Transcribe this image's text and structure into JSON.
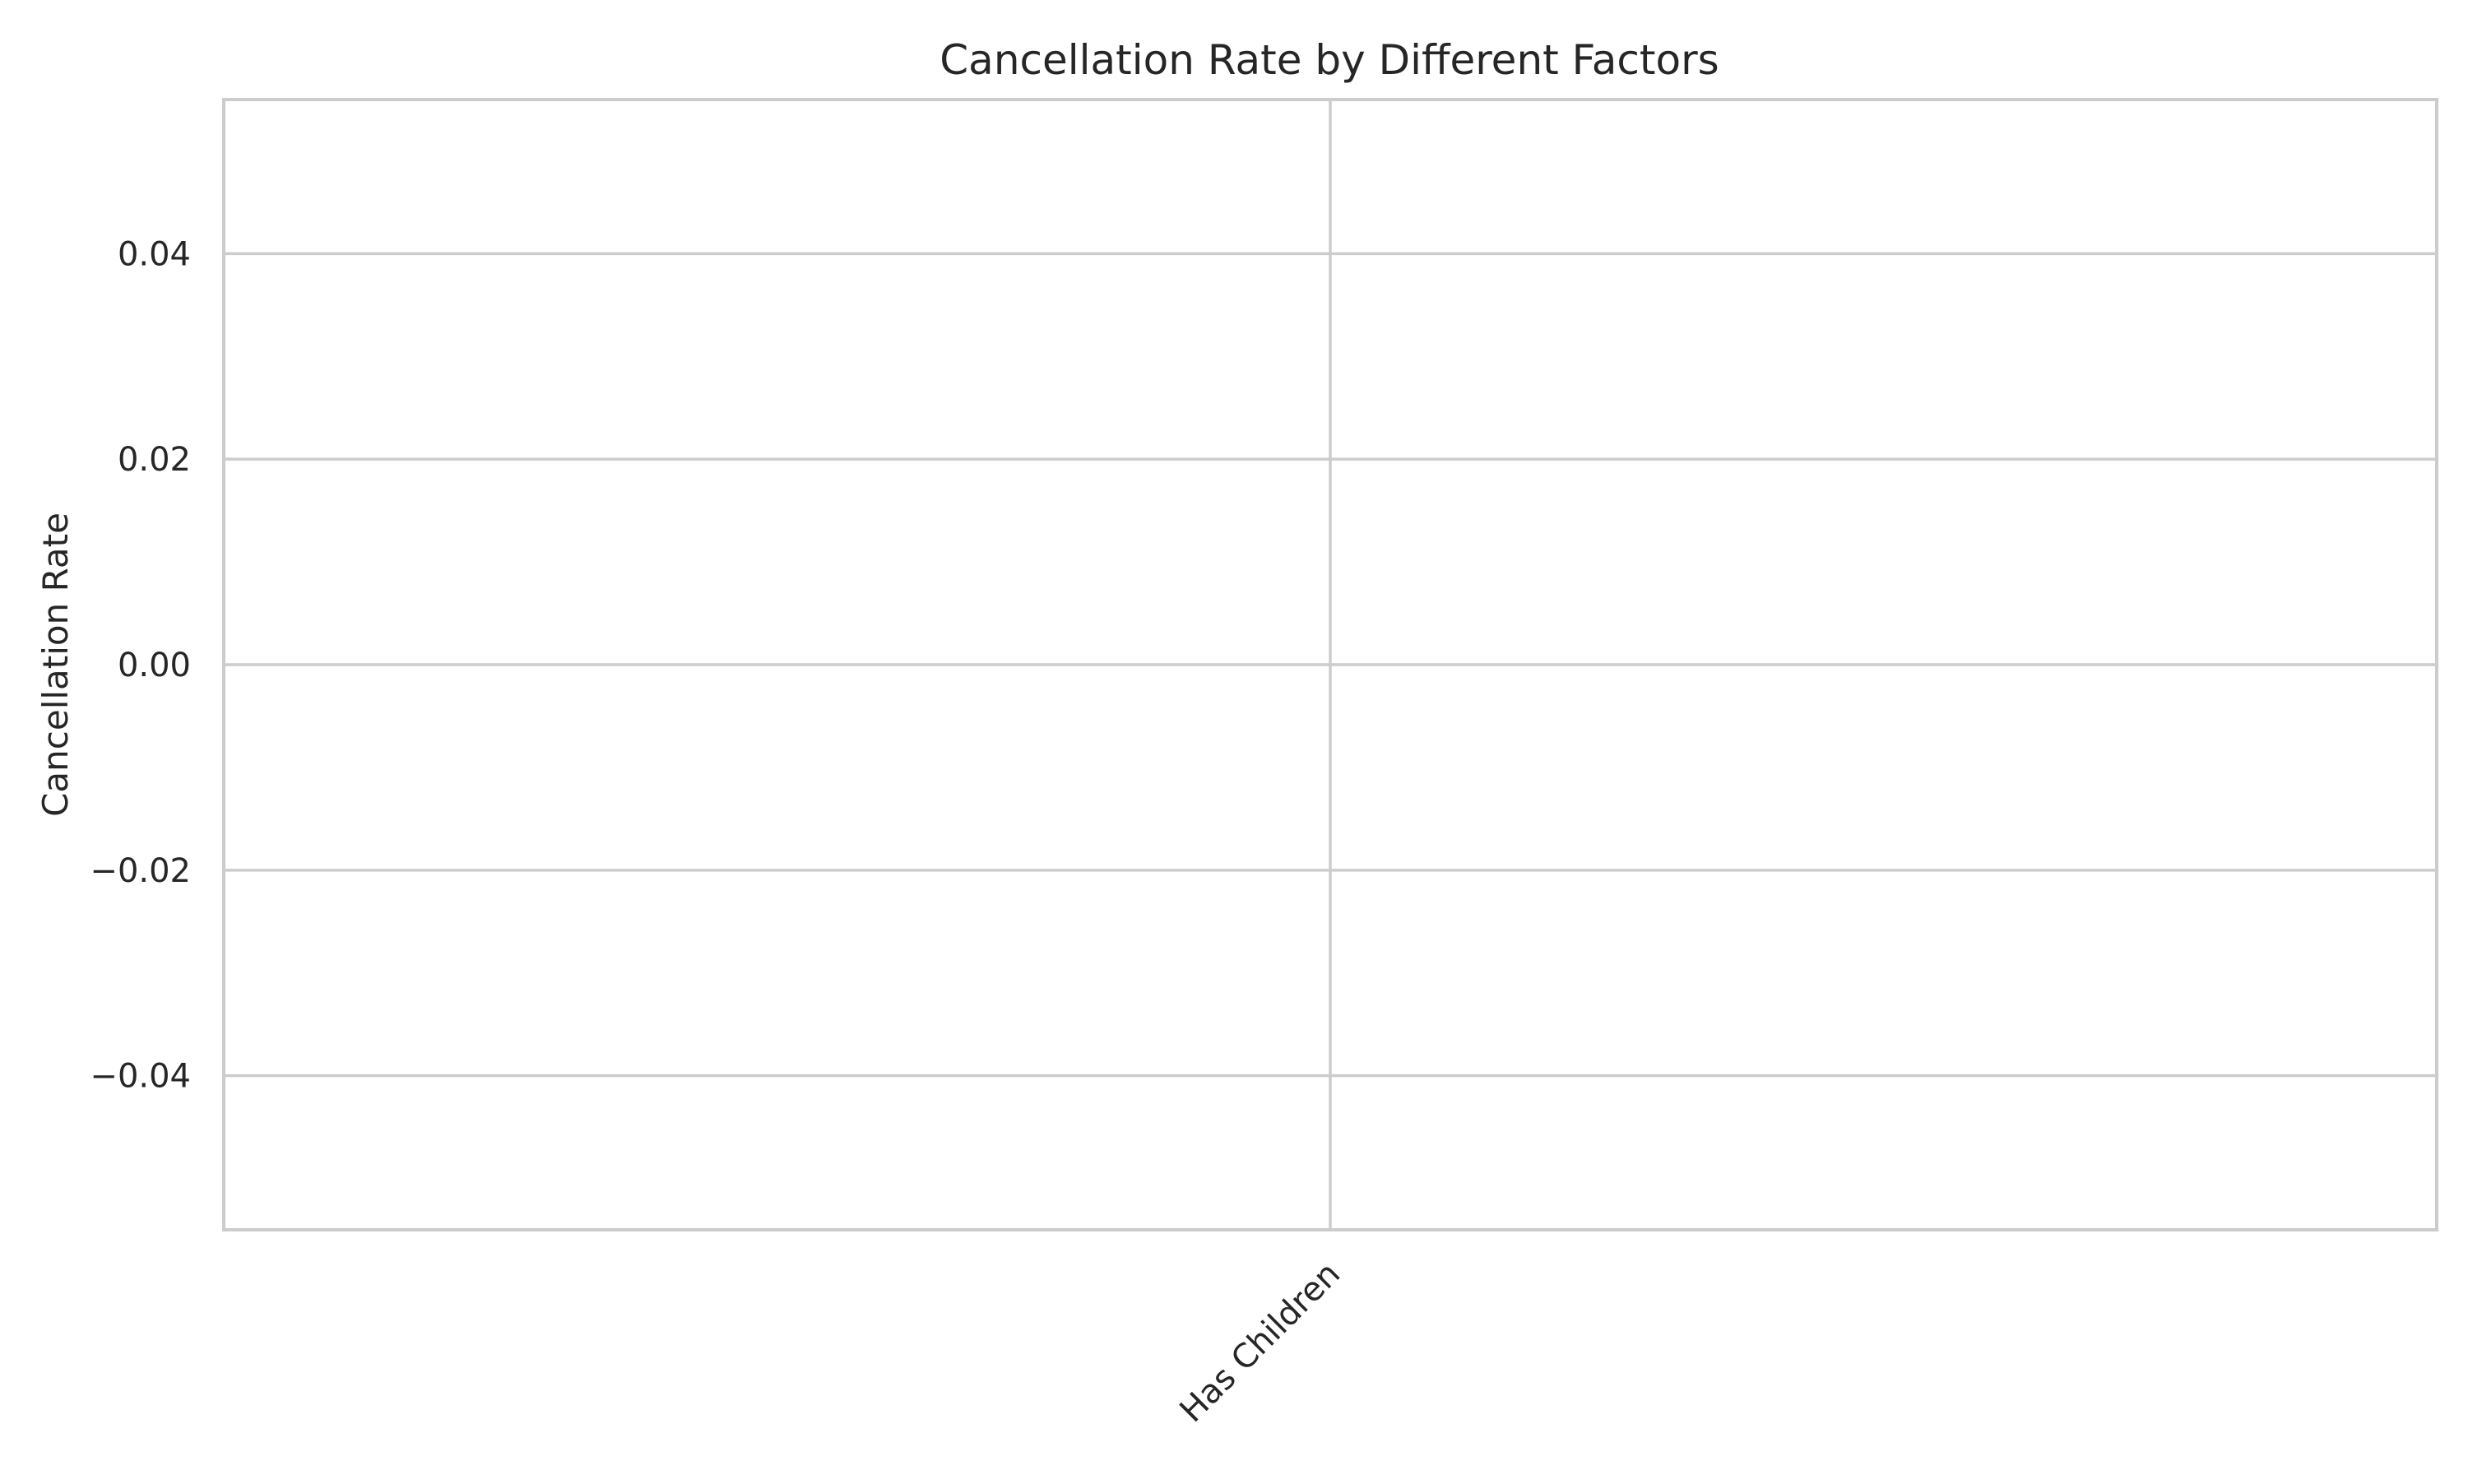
{
  "chart_data": {
    "type": "bar",
    "title": "Cancellation Rate by Different Factors",
    "xlabel": "",
    "ylabel": "Cancellation Rate",
    "categories": [
      "Has Children"
    ],
    "values": [
      null
    ],
    "ylim": [
      -0.055,
      0.055
    ],
    "yticks": [
      -0.04,
      -0.02,
      0.0,
      0.02,
      0.04
    ],
    "ytick_labels": [
      "−0.04",
      "−0.02",
      "0.00",
      "0.02",
      "0.04"
    ],
    "xtick_rotation_deg": 45,
    "grid": true,
    "style": {
      "axis_color": "#cccccc",
      "grid_color": "#cccccc",
      "text_color": "#262626",
      "background": "#ffffff"
    }
  }
}
